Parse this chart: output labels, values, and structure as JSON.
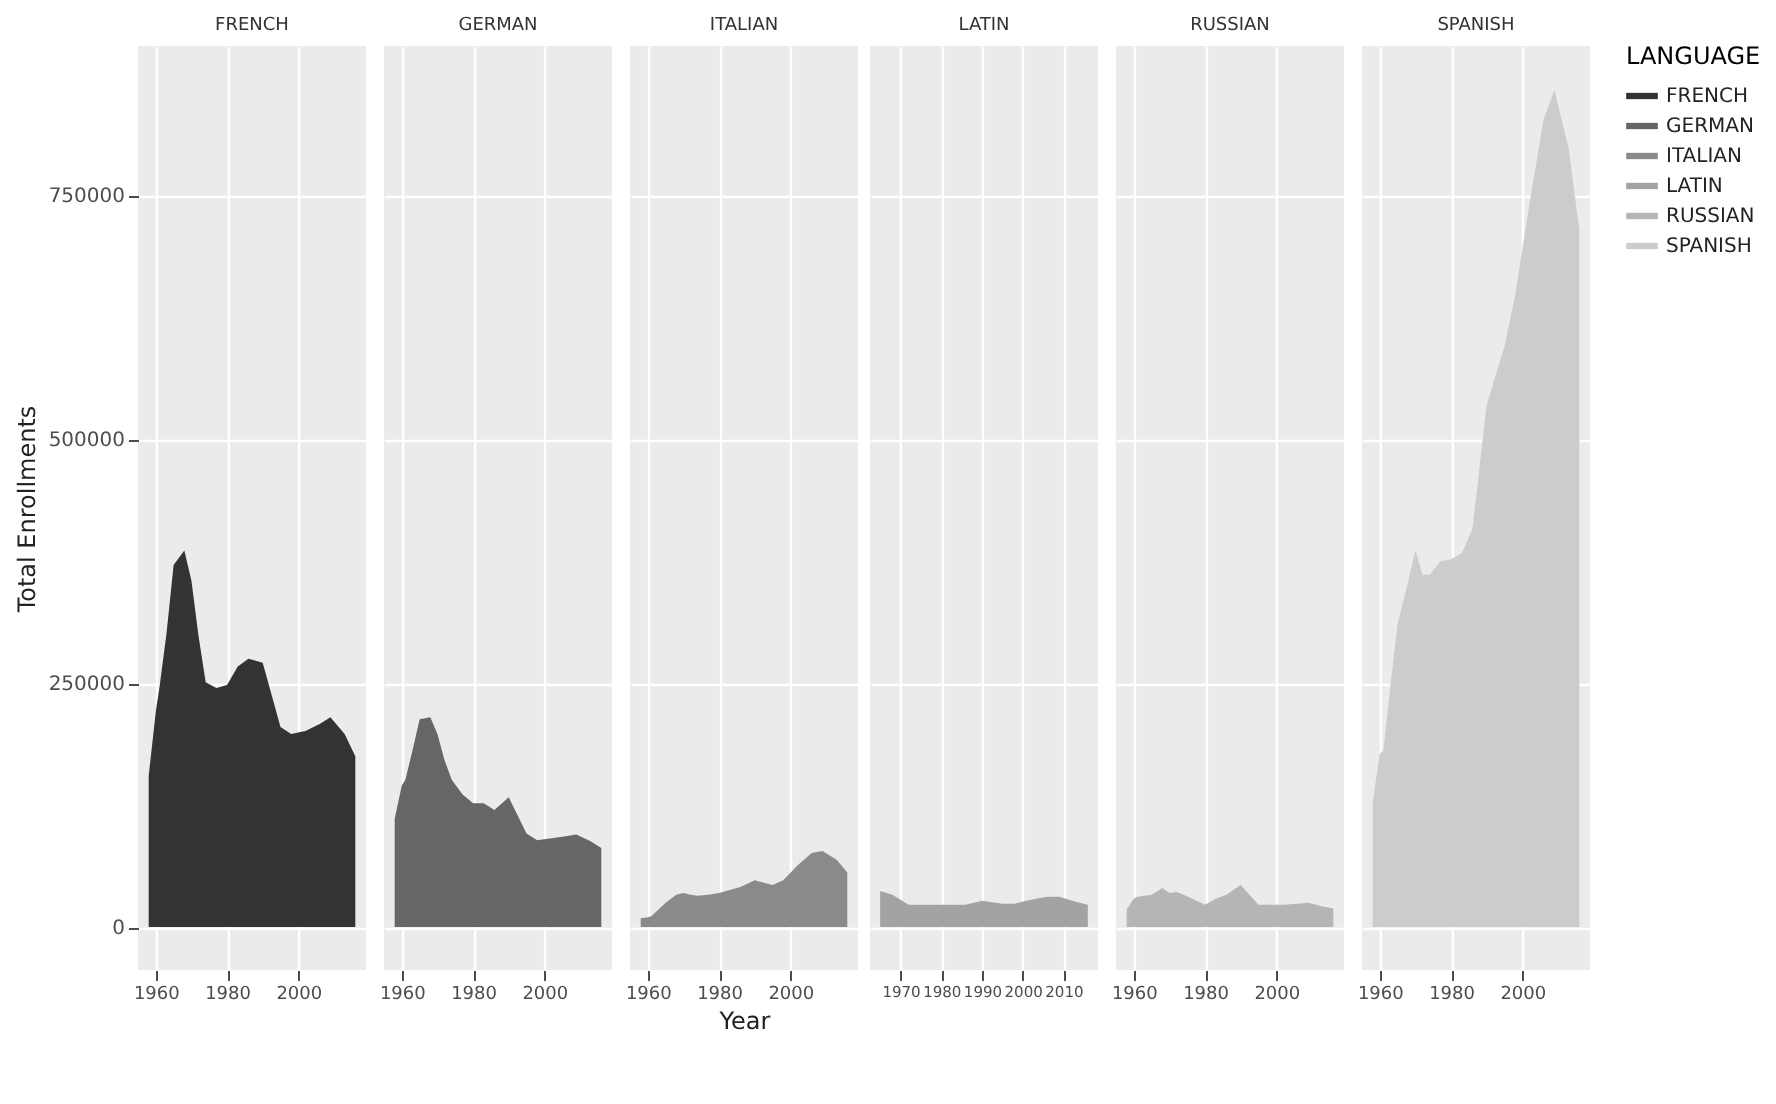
{
  "chart_data": [
    {
      "type": "area",
      "title": "FRENCH",
      "ylabel": "Total Enrollments",
      "xlim": [
        1955,
        2019
      ],
      "xticks": [
        1960,
        1980,
        2000
      ],
      "ylim": [
        -44000,
        903000
      ],
      "yticks": [
        0,
        250000,
        500000,
        750000
      ],
      "grid": true,
      "series": [
        {
          "name": "FRENCH",
          "color": "#333333",
          "x": [
            1958,
            1960,
            1961,
            1963,
            1965,
            1968,
            1970,
            1972,
            1974,
            1977,
            1980,
            1983,
            1986,
            1990,
            1995,
            1998,
            2002,
            2006,
            2009,
            2013,
            2016
          ],
          "values": [
            155000,
            221000,
            245000,
            301000,
            371000,
            386000,
            355000,
            298000,
            251000,
            245000,
            248000,
            267000,
            275000,
            271000,
            205000,
            198000,
            201000,
            208000,
            215000,
            198000,
            175000
          ]
        }
      ]
    },
    {
      "type": "area",
      "title": "GERMAN",
      "xlim": [
        1955,
        2019
      ],
      "xticks": [
        1960,
        1980,
        2000
      ],
      "ylim": [
        -44000,
        903000
      ],
      "yticks": [
        0,
        250000,
        500000,
        750000
      ],
      "grid": true,
      "tick_labels": "x",
      "series": [
        {
          "name": "GERMAN",
          "color": "#666666",
          "x": [
            1958,
            1960,
            1961,
            1963,
            1965,
            1968,
            1970,
            1972,
            1974,
            1977,
            1980,
            1983,
            1986,
            1990,
            1995,
            1998,
            2002,
            2006,
            2009,
            2013,
            2016
          ],
          "values": [
            111000,
            145000,
            151000,
            181000,
            213000,
            215000,
            198000,
            171000,
            151000,
            136000,
            127000,
            127000,
            120000,
            133000,
            96000,
            89000,
            91000,
            93000,
            95000,
            88000,
            81000
          ]
        }
      ]
    },
    {
      "type": "area",
      "title": "ITALIAN",
      "xlabel": "Year",
      "xlim": [
        1955,
        2019
      ],
      "xticks": [
        1960,
        1980,
        2000
      ],
      "ylim": [
        -44000,
        903000
      ],
      "yticks": [
        0,
        250000,
        500000,
        750000
      ],
      "grid": true,
      "tick_labels": "x",
      "series": [
        {
          "name": "ITALIAN",
          "color": "#8a8a8a",
          "x": [
            1958,
            1960,
            1961,
            1963,
            1965,
            1968,
            1970,
            1972,
            1974,
            1977,
            1980,
            1983,
            1986,
            1990,
            1995,
            1998,
            2002,
            2006,
            2009,
            2013,
            2016
          ],
          "values": [
            9000,
            10000,
            11000,
            18000,
            25000,
            33000,
            35000,
            33000,
            32000,
            33000,
            35000,
            38000,
            41000,
            48000,
            43000,
            48000,
            63000,
            76000,
            78000,
            69000,
            56000
          ]
        }
      ]
    },
    {
      "type": "area",
      "title": "LATIN",
      "xlim": [
        1962.5,
        2018.5
      ],
      "xticks": [
        1970,
        1980,
        1990,
        2000,
        2010
      ],
      "ylim": [
        -44000,
        903000
      ],
      "yticks": [
        0,
        250000,
        500000,
        750000
      ],
      "grid": true,
      "tick_labels": "x",
      "series": [
        {
          "name": "LATIN",
          "color": "#a3a3a3",
          "x": [
            1965,
            1968,
            1970,
            1972,
            1974,
            1977,
            1980,
            1983,
            1986,
            1990,
            1995,
            1998,
            2002,
            2006,
            2009,
            2013,
            2016
          ],
          "values": [
            37000,
            33000,
            28000,
            23000,
            23000,
            23000,
            23000,
            23000,
            23000,
            27000,
            24000,
            24000,
            28000,
            31000,
            31000,
            26000,
            23000
          ]
        }
      ]
    },
    {
      "type": "area",
      "title": "RUSSIAN",
      "xlim": [
        1955,
        2019
      ],
      "xticks": [
        1960,
        1980,
        2000
      ],
      "ylim": [
        -44000,
        903000
      ],
      "yticks": [
        0,
        250000,
        500000,
        750000
      ],
      "grid": true,
      "tick_labels": "x",
      "series": [
        {
          "name": "RUSSIAN",
          "color": "#b5b5b5",
          "x": [
            1958,
            1960,
            1961,
            1963,
            1965,
            1968,
            1970,
            1972,
            1974,
            1977,
            1980,
            1983,
            1986,
            1990,
            1995,
            1998,
            2002,
            2006,
            2009,
            2013,
            2016
          ],
          "values": [
            18000,
            29000,
            31000,
            32000,
            33000,
            40000,
            35000,
            36000,
            33000,
            28000,
            23000,
            29000,
            33000,
            43000,
            23000,
            23000,
            23000,
            24000,
            25000,
            21000,
            19000
          ]
        }
      ]
    },
    {
      "type": "area",
      "title": "SPANISH",
      "legend": "right",
      "legend_title": "LANGUAGE",
      "xlim": [
        1955,
        2019
      ],
      "xticks": [
        1960,
        1980,
        2000
      ],
      "ylim": [
        -44000,
        903000
      ],
      "yticks": [
        0,
        250000,
        500000,
        750000
      ],
      "grid": true,
      "tick_labels": "x",
      "series": [
        {
          "name": "SPANISH",
          "color": "#cccccc",
          "x": [
            1958,
            1960,
            1961,
            1963,
            1965,
            1968,
            1970,
            1972,
            1974,
            1977,
            1980,
            1983,
            1986,
            1990,
            1995,
            1998,
            2002,
            2006,
            2009,
            2013,
            2016
          ],
          "values": [
            128000,
            178000,
            181000,
            248000,
            311000,
            355000,
            386000,
            361000,
            361000,
            375000,
            377000,
            383000,
            408000,
            535000,
            595000,
            648000,
            741000,
            828000,
            858000,
            798000,
            715000
          ]
        }
      ]
    }
  ]
}
